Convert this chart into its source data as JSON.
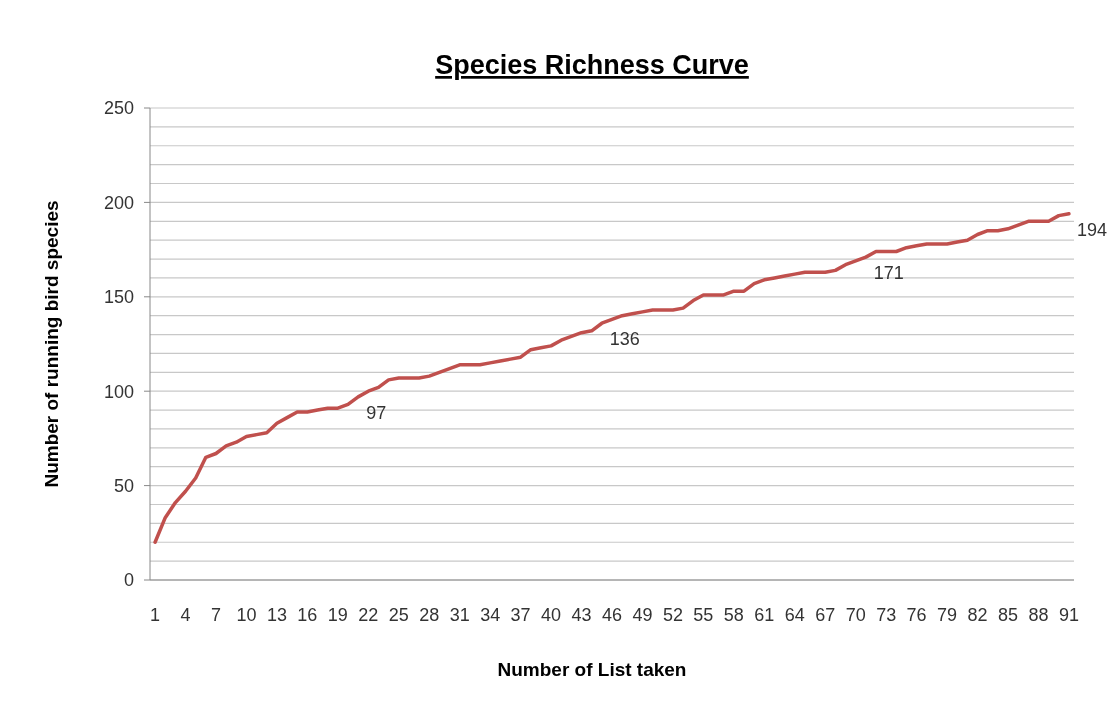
{
  "chart_data": {
    "type": "line",
    "title": "Species Richness Curve",
    "xlabel": "Number of List taken",
    "ylabel": "Number of running bird species",
    "categories": [
      "1",
      null,
      null,
      "4",
      null,
      null,
      "7",
      null,
      null,
      "10",
      null,
      null,
      "13",
      null,
      null,
      "16",
      null,
      null,
      "19",
      null,
      null,
      "22",
      null,
      null,
      "25",
      null,
      null,
      "28",
      null,
      null,
      "31",
      null,
      null,
      "34",
      null,
      null,
      "37",
      null,
      null,
      "40",
      null,
      null,
      "43",
      null,
      null,
      "46",
      null,
      null,
      "49",
      null,
      null,
      "52",
      null,
      null,
      "55",
      null,
      null,
      "58",
      null,
      null,
      "61",
      null,
      null,
      "64",
      null,
      null,
      "67",
      null,
      null,
      "70",
      null,
      null,
      "73",
      null,
      null,
      "76",
      null,
      null,
      "79",
      null,
      null,
      "82",
      null,
      null,
      "85",
      null,
      null,
      "88",
      null,
      null,
      "91"
    ],
    "series": [
      {
        "color": "#c0504d",
        "values": [
          20,
          33,
          41,
          47,
          54,
          65,
          67,
          71,
          73,
          76,
          77,
          78,
          83,
          86,
          89,
          89,
          90,
          91,
          91,
          93,
          97,
          100,
          102,
          106,
          107,
          107,
          107,
          108,
          110,
          112,
          114,
          114,
          114,
          115,
          116,
          117,
          118,
          122,
          123,
          124,
          127,
          129,
          131,
          132,
          136,
          138,
          140,
          141,
          142,
          143,
          143,
          143,
          144,
          148,
          151,
          151,
          151,
          153,
          153,
          157,
          159,
          160,
          161,
          162,
          163,
          163,
          163,
          164,
          167,
          169,
          171,
          174,
          174,
          174,
          176,
          177,
          178,
          178,
          178,
          179,
          180,
          183,
          185,
          185,
          186,
          188,
          190,
          190,
          190,
          193,
          194
        ],
        "value_labels": [
          null,
          null,
          null,
          null,
          null,
          null,
          null,
          null,
          null,
          null,
          null,
          null,
          null,
          null,
          null,
          null,
          null,
          null,
          null,
          null,
          "97",
          null,
          null,
          null,
          null,
          null,
          null,
          null,
          null,
          null,
          null,
          null,
          null,
          null,
          null,
          null,
          null,
          null,
          null,
          null,
          null,
          null,
          null,
          null,
          "136",
          null,
          null,
          null,
          null,
          null,
          null,
          null,
          null,
          null,
          null,
          null,
          null,
          null,
          null,
          null,
          null,
          null,
          null,
          null,
          null,
          null,
          null,
          null,
          null,
          null,
          "171",
          null,
          null,
          null,
          null,
          null,
          null,
          null,
          null,
          null,
          null,
          null,
          null,
          null,
          null,
          null,
          null,
          null,
          null,
          null,
          "194"
        ]
      }
    ],
    "ylim": [
      0,
      250
    ],
    "yticks": [
      0,
      {
        "value": 10,
        "label": null
      },
      {
        "value": 20,
        "label": null
      },
      {
        "value": 30,
        "label": null
      },
      {
        "value": 40,
        "label": null
      },
      50,
      {
        "value": 60,
        "label": null
      },
      {
        "value": 70,
        "label": null
      },
      {
        "value": 80,
        "label": null
      },
      {
        "value": 90,
        "label": null
      },
      100,
      {
        "value": 110,
        "label": null
      },
      {
        "value": 120,
        "label": null
      },
      {
        "value": 130,
        "label": null
      },
      {
        "value": 140,
        "label": null
      },
      150,
      {
        "value": 160,
        "label": null
      },
      {
        "value": 170,
        "label": null
      },
      {
        "value": 180,
        "label": null
      },
      {
        "value": 190,
        "label": null
      },
      200,
      {
        "value": 210,
        "label": null
      },
      {
        "value": 220,
        "label": null
      },
      {
        "value": 230,
        "label": null
      },
      {
        "value": 240,
        "label": null
      },
      250
    ],
    "grid": true,
    "marker": "none",
    "line_style": "solid"
  }
}
